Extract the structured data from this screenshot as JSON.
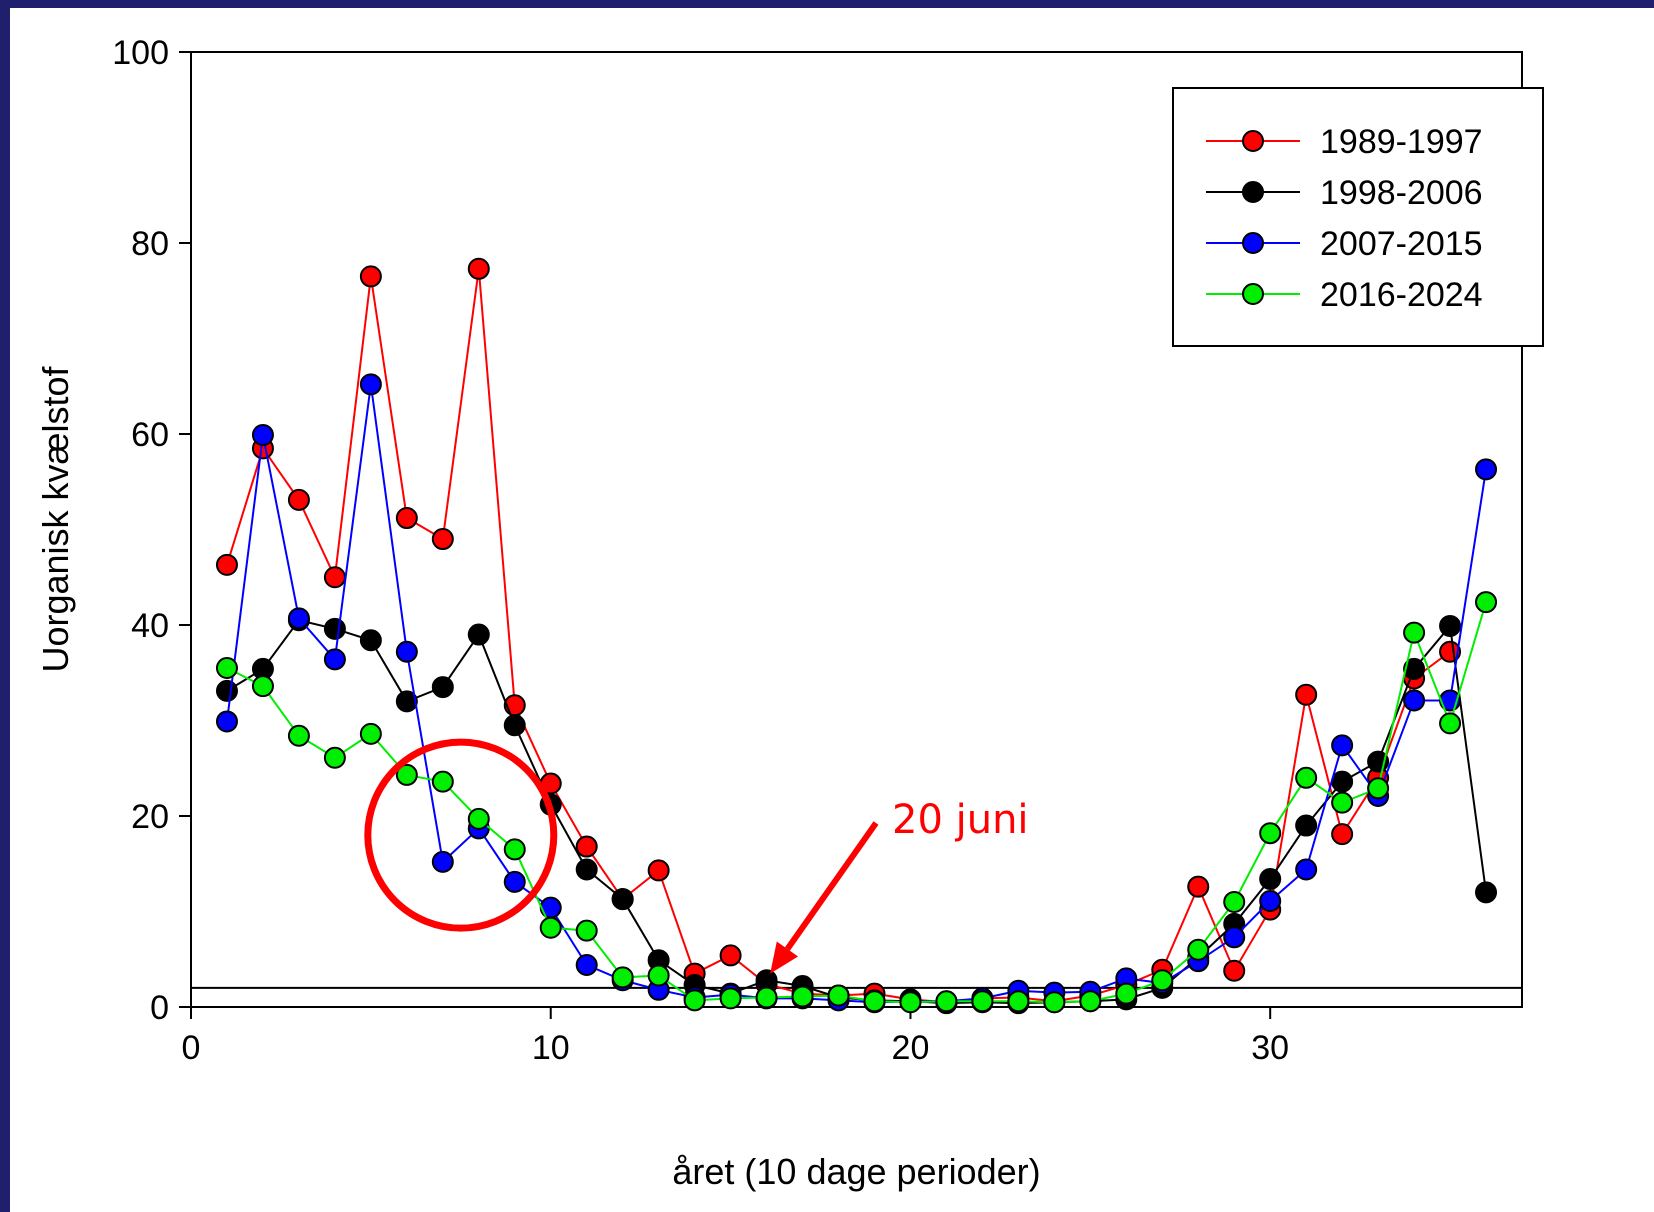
{
  "chart_data": {
    "type": "line",
    "xlabel": "året (10 dage perioder)",
    "ylabel": "Uorganisk kvælstof",
    "xlim": [
      0,
      37
    ],
    "ylim": [
      0,
      100
    ],
    "x_ticks": [
      0,
      10,
      20,
      30
    ],
    "y_ticks": [
      0,
      20,
      40,
      60,
      80,
      100
    ],
    "reference_line_y": 2,
    "legend_position": "top-right",
    "x": [
      1,
      2,
      3,
      4,
      5,
      6,
      7,
      8,
      9,
      10,
      11,
      12,
      13,
      14,
      15,
      16,
      17,
      18,
      19,
      20,
      21,
      22,
      23,
      24,
      25,
      26,
      27,
      28,
      29,
      30,
      31,
      32,
      33,
      34,
      35,
      36
    ],
    "series": [
      {
        "name": "1989-1997",
        "color": "#ff0000",
        "values": [
          46.3,
          58.5,
          53.1,
          45.0,
          76.5,
          51.2,
          49.0,
          77.3,
          31.6,
          23.4,
          16.8,
          11.3,
          14.3,
          3.5,
          5.4,
          2.4,
          1.4,
          1.2,
          1.4,
          0.8,
          0.5,
          0.9,
          1.0,
          0.6,
          1.2,
          2.3,
          3.9,
          12.6,
          3.8,
          10.2,
          32.7,
          18.1,
          24.0,
          34.4,
          37.2,
          null
        ]
      },
      {
        "name": "1998-2006",
        "color": "#000000",
        "values": [
          33.1,
          35.4,
          40.5,
          39.6,
          38.4,
          32.0,
          33.5,
          39.0,
          29.5,
          21.2,
          14.4,
          11.3,
          4.9,
          2.3,
          1.4,
          2.8,
          2.2,
          1.0,
          0.7,
          0.6,
          0.4,
          0.5,
          0.4,
          0.5,
          0.6,
          0.8,
          2.0,
          5.2,
          8.7,
          13.4,
          19.0,
          23.6,
          25.7,
          35.4,
          39.9,
          12.0
        ]
      },
      {
        "name": "2007-2015",
        "color": "#0000ff",
        "values": [
          29.9,
          59.9,
          40.7,
          36.4,
          65.2,
          37.2,
          15.2,
          18.7,
          13.1,
          10.4,
          4.4,
          2.8,
          1.8,
          1.0,
          1.3,
          0.9,
          0.9,
          0.7,
          0.5,
          0.6,
          0.6,
          0.9,
          1.7,
          1.5,
          1.6,
          3.0,
          2.5,
          4.8,
          7.3,
          11.1,
          14.4,
          27.4,
          22.1,
          32.1,
          32.1,
          56.3
        ]
      },
      {
        "name": "2016-2024",
        "color": "#00ee00",
        "values": [
          35.5,
          33.6,
          28.4,
          26.1,
          28.6,
          24.3,
          23.6,
          19.7,
          16.5,
          8.3,
          8.0,
          3.1,
          3.3,
          0.7,
          0.9,
          1.0,
          1.1,
          1.2,
          0.6,
          0.5,
          0.6,
          0.6,
          0.6,
          0.5,
          0.6,
          1.4,
          2.8,
          6.0,
          11.0,
          18.2,
          24.0,
          21.4,
          22.9,
          39.2,
          29.7,
          42.4
        ]
      }
    ],
    "annotations": {
      "label": "20 juni",
      "label_color": "#ff0000",
      "arrow_target": {
        "x": 16.1,
        "y": 3.5
      },
      "circle_center": {
        "x": 7.5,
        "y": 18
      }
    }
  }
}
